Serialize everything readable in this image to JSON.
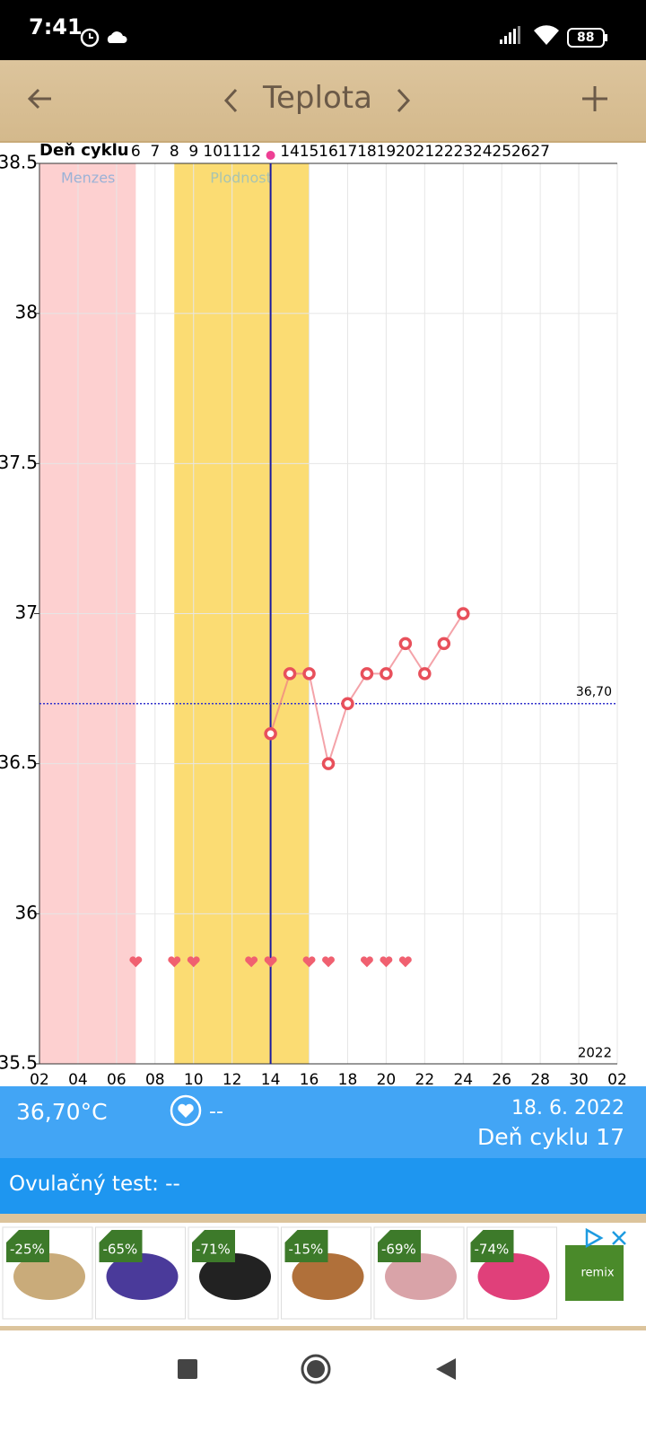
{
  "status_bar": {
    "time": "7:41",
    "battery": "88"
  },
  "header": {
    "title": "Teplota"
  },
  "chart_data": {
    "type": "line",
    "top_axis_label": "Deň cyklu",
    "cycle_days": {
      "x": [
        7,
        8,
        9,
        10,
        11,
        12,
        13,
        14,
        15,
        16,
        17,
        18,
        19,
        20,
        21,
        22,
        23,
        24,
        25,
        26,
        27,
        28
      ],
      "labels": [
        6,
        7,
        8,
        9,
        10,
        11,
        12,
        null,
        14,
        15,
        16,
        17,
        18,
        19,
        20,
        21,
        22,
        23,
        24,
        25,
        26,
        27
      ]
    },
    "x": [
      14,
      15,
      16,
      17,
      18,
      19,
      20,
      21,
      22,
      23,
      24
    ],
    "series": [
      {
        "color": "#f07c84",
        "values": [
          36.6,
          36.8,
          36.8,
          36.5,
          36.7,
          36.8,
          36.8,
          36.9,
          36.8,
          36.9,
          37.0
        ]
      }
    ],
    "xlim": [
      2,
      32
    ],
    "xticks": [
      {
        "value": 2,
        "label": "02"
      },
      {
        "value": 4,
        "label": "04"
      },
      {
        "value": 6,
        "label": "06"
      },
      {
        "value": 8,
        "label": "08"
      },
      10,
      12,
      14,
      16,
      18,
      20,
      22,
      24,
      26,
      28,
      30,
      {
        "value": 32,
        "label": "02"
      }
    ],
    "ylim": [
      35.5,
      38.5
    ],
    "yticks": [
      35.5,
      36,
      36.5,
      37,
      37.5,
      38,
      38.5
    ],
    "grid": true,
    "bands": [
      {
        "label": "Menzes",
        "start": 2,
        "end": 7,
        "color": "#fdd0d0"
      },
      {
        "label": "Plodnosť",
        "start": 9,
        "end": 16,
        "color": "#fbdc73"
      }
    ],
    "today_x": 14,
    "reference_line": {
      "value": 36.7,
      "label": "36,70"
    },
    "hearts_x": [
      7,
      9,
      10,
      13,
      14,
      16,
      17,
      19,
      20,
      21
    ],
    "hearts_y": 35.84,
    "year_label": "2022"
  },
  "info": {
    "temperature": "36,70°C",
    "test": "--",
    "date": "18. 6. 2022",
    "cycle_day": "Deň cyklu 17"
  },
  "ovulation": {
    "label": "Ovulačný test: --"
  },
  "ad": {
    "discounts": [
      "-25%",
      "-65%",
      "-71%",
      "-15%",
      "-69%",
      "-74%"
    ],
    "brand": "remix"
  }
}
